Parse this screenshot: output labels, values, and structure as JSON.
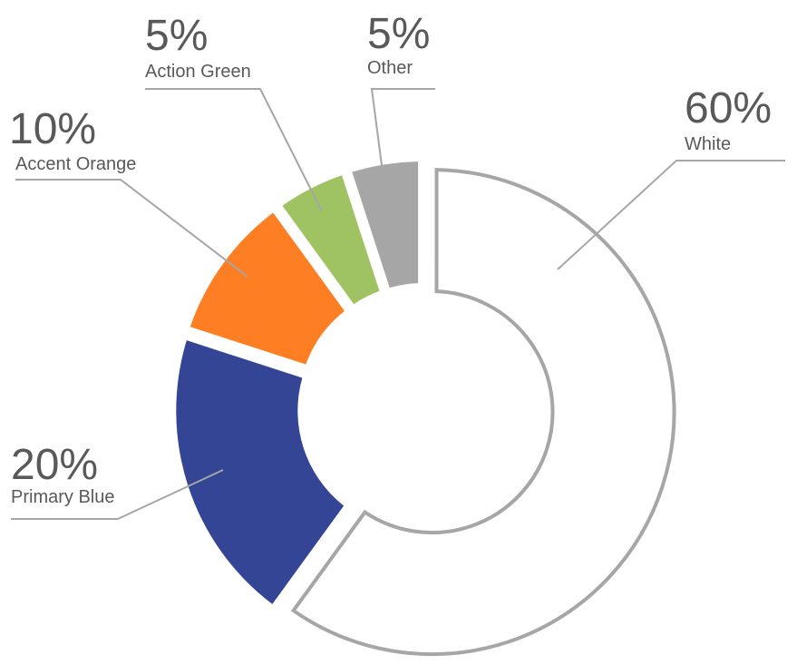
{
  "chart_data": {
    "type": "pie",
    "variant": "donut",
    "slices": [
      {
        "label": "White",
        "value": 60,
        "display": "60%",
        "color": "#ffffff",
        "stroke": "#a6a6a6"
      },
      {
        "label": "Primary Blue",
        "value": 20,
        "display": "20%",
        "color": "#334594",
        "stroke": "none"
      },
      {
        "label": "Accent Orange",
        "value": 10,
        "display": "10%",
        "color": "#fd7e23",
        "stroke": "none"
      },
      {
        "label": "Action Green",
        "value": 5,
        "display": "5%",
        "color": "#9fc363",
        "stroke": "none"
      },
      {
        "label": "Other",
        "value": 5,
        "display": "5%",
        "color": "#a6a6a6",
        "stroke": "none"
      }
    ],
    "legend": "none",
    "labels": "outside with leader lines"
  }
}
